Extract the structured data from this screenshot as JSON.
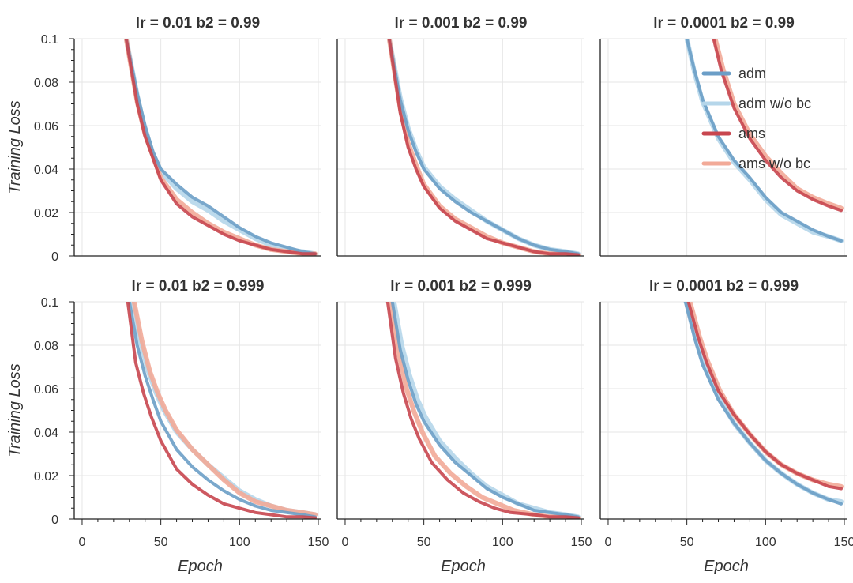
{
  "colors": {
    "adm": "#6b9ec7",
    "adm_wo_bc": "#b5d6ea",
    "ams": "#c8464f",
    "ams_wo_bc": "#f2aa98",
    "grid": "#e6e6e6",
    "axis": "#222222"
  },
  "figure": {
    "ylabel": "Training Loss",
    "xlabel": "Epoch",
    "legend": [
      "adm",
      "adm w/o bc",
      "ams",
      "ams w/o bc"
    ]
  },
  "chart_data": [
    {
      "type": "line",
      "title": "lr = 0.01   b2 = 0.99",
      "xlim": [
        -5,
        152
      ],
      "ylim": [
        0,
        0.1
      ],
      "xticks": [
        "0",
        "50",
        "100",
        "150"
      ],
      "yticks": [
        "0",
        "0.02",
        "0.04",
        "0.06",
        "0.08",
        "0.1"
      ],
      "ylabel": "Training Loss",
      "xlabel": "",
      "series": [
        {
          "name": "adm",
          "x": [
            28,
            35,
            40,
            45,
            50,
            60,
            70,
            80,
            90,
            100,
            110,
            120,
            130,
            140,
            148
          ],
          "y": [
            0.1,
            0.075,
            0.06,
            0.048,
            0.04,
            0.033,
            0.027,
            0.023,
            0.018,
            0.013,
            0.009,
            0.006,
            0.004,
            0.002,
            0.001
          ]
        },
        {
          "name": "adm w/o bc",
          "x": [
            28,
            35,
            40,
            45,
            50,
            60,
            70,
            80,
            90,
            100,
            110,
            120,
            130,
            140,
            148
          ],
          "y": [
            0.1,
            0.074,
            0.058,
            0.047,
            0.039,
            0.031,
            0.025,
            0.021,
            0.016,
            0.012,
            0.008,
            0.005,
            0.003,
            0.002,
            0.001
          ]
        },
        {
          "name": "ams",
          "x": [
            28,
            35,
            40,
            45,
            50,
            60,
            70,
            80,
            90,
            100,
            110,
            120,
            130,
            140,
            148
          ],
          "y": [
            0.1,
            0.07,
            0.055,
            0.045,
            0.035,
            0.024,
            0.018,
            0.014,
            0.01,
            0.007,
            0.005,
            0.003,
            0.002,
            0.001,
            0.001
          ]
        },
        {
          "name": "ams w/o bc",
          "x": [
            28,
            35,
            40,
            45,
            50,
            60,
            70,
            80,
            90,
            100,
            110,
            120,
            130,
            140,
            148
          ],
          "y": [
            0.1,
            0.071,
            0.056,
            0.046,
            0.036,
            0.026,
            0.02,
            0.015,
            0.011,
            0.008,
            0.005,
            0.003,
            0.002,
            0.001,
            0.001
          ]
        }
      ]
    },
    {
      "type": "line",
      "title": "lr = 0.001   b2 = 0.99",
      "xlim": [
        -5,
        152
      ],
      "ylim": [
        0,
        0.1
      ],
      "xticks": [
        "0",
        "50",
        "100",
        "150"
      ],
      "yticks": [
        "0",
        "0.02",
        "0.04",
        "0.06",
        "0.08",
        "0.1"
      ],
      "ylabel": "",
      "xlabel": "",
      "series": [
        {
          "name": "adm",
          "x": [
            28,
            35,
            40,
            45,
            50,
            60,
            70,
            80,
            90,
            100,
            110,
            120,
            130,
            140,
            148
          ],
          "y": [
            0.1,
            0.072,
            0.058,
            0.048,
            0.04,
            0.031,
            0.025,
            0.02,
            0.016,
            0.012,
            0.008,
            0.005,
            0.003,
            0.002,
            0.001
          ]
        },
        {
          "name": "adm w/o bc",
          "x": [
            28,
            35,
            40,
            45,
            50,
            60,
            70,
            80,
            90,
            100,
            110,
            120,
            130,
            140,
            148
          ],
          "y": [
            0.1,
            0.073,
            0.059,
            0.049,
            0.041,
            0.032,
            0.026,
            0.021,
            0.016,
            0.012,
            0.008,
            0.005,
            0.003,
            0.002,
            0.001
          ]
        },
        {
          "name": "ams",
          "x": [
            28,
            35,
            40,
            45,
            50,
            60,
            70,
            80,
            90,
            100,
            110,
            120,
            130,
            140,
            148
          ],
          "y": [
            0.1,
            0.066,
            0.05,
            0.04,
            0.032,
            0.022,
            0.016,
            0.012,
            0.008,
            0.006,
            0.004,
            0.002,
            0.001,
            0.001,
            0.0005
          ]
        },
        {
          "name": "ams w/o bc",
          "x": [
            28,
            35,
            40,
            45,
            50,
            60,
            70,
            80,
            90,
            100,
            110,
            120,
            130,
            140,
            148
          ],
          "y": [
            0.1,
            0.068,
            0.052,
            0.042,
            0.033,
            0.023,
            0.017,
            0.013,
            0.009,
            0.006,
            0.004,
            0.002,
            0.001,
            0.001,
            0.0005
          ]
        }
      ]
    },
    {
      "type": "line",
      "title": "lr = 0.0001   b2 = 0.99",
      "xlim": [
        -5,
        152
      ],
      "ylim": [
        0,
        0.1
      ],
      "xticks": [
        "0",
        "50",
        "100",
        "150"
      ],
      "yticks": [
        "0",
        "0.02",
        "0.04",
        "0.06",
        "0.08",
        "0.1"
      ],
      "ylabel": "",
      "xlabel": "",
      "legend_position": "top-right",
      "series": [
        {
          "name": "adm",
          "x": [
            50,
            55,
            60,
            70,
            80,
            90,
            100,
            110,
            120,
            130,
            140,
            148
          ],
          "y": [
            0.1,
            0.085,
            0.072,
            0.055,
            0.044,
            0.036,
            0.027,
            0.02,
            0.016,
            0.012,
            0.009,
            0.007
          ]
        },
        {
          "name": "adm w/o bc",
          "x": [
            50,
            55,
            60,
            70,
            80,
            90,
            100,
            110,
            120,
            130,
            140,
            148
          ],
          "y": [
            0.1,
            0.084,
            0.071,
            0.054,
            0.043,
            0.035,
            0.026,
            0.019,
            0.015,
            0.011,
            0.009,
            0.007
          ]
        },
        {
          "name": "ams",
          "x": [
            67,
            72,
            80,
            90,
            100,
            110,
            120,
            130,
            140,
            148
          ],
          "y": [
            0.1,
            0.085,
            0.068,
            0.054,
            0.044,
            0.036,
            0.03,
            0.026,
            0.023,
            0.021
          ]
        },
        {
          "name": "ams w/o bc",
          "x": [
            68,
            73,
            80,
            90,
            100,
            110,
            120,
            130,
            140,
            148
          ],
          "y": [
            0.1,
            0.086,
            0.07,
            0.056,
            0.046,
            0.038,
            0.031,
            0.027,
            0.024,
            0.022
          ]
        }
      ]
    },
    {
      "type": "line",
      "title": "lr = 0.01   b2 = 0.999",
      "xlim": [
        -5,
        152
      ],
      "ylim": [
        0,
        0.1
      ],
      "xticks": [
        "0",
        "50",
        "100",
        "150"
      ],
      "yticks": [
        "0",
        "0.02",
        "0.04",
        "0.06",
        "0.08",
        "0.1"
      ],
      "ylabel": "Training Loss",
      "xlabel": "Epoch",
      "series": [
        {
          "name": "adm",
          "x": [
            30,
            35,
            40,
            45,
            50,
            60,
            70,
            80,
            90,
            100,
            110,
            120,
            130,
            140,
            148
          ],
          "y": [
            0.1,
            0.08,
            0.066,
            0.055,
            0.045,
            0.032,
            0.024,
            0.018,
            0.013,
            0.009,
            0.006,
            0.004,
            0.003,
            0.002,
            0.001
          ]
        },
        {
          "name": "adm w/o bc",
          "x": [
            32,
            37,
            42,
            47,
            52,
            60,
            70,
            80,
            90,
            100,
            110,
            120,
            130,
            140,
            148
          ],
          "y": [
            0.1,
            0.082,
            0.068,
            0.058,
            0.05,
            0.04,
            0.032,
            0.025,
            0.019,
            0.013,
            0.009,
            0.006,
            0.004,
            0.003,
            0.002
          ]
        },
        {
          "name": "ams",
          "x": [
            29,
            34,
            39,
            44,
            50,
            60,
            70,
            80,
            90,
            100,
            110,
            120,
            130,
            140,
            148
          ],
          "y": [
            0.1,
            0.072,
            0.058,
            0.047,
            0.036,
            0.023,
            0.016,
            0.011,
            0.007,
            0.005,
            0.003,
            0.002,
            0.001,
            0.001,
            0.0005
          ]
        },
        {
          "name": "ams w/o bc",
          "x": [
            33,
            38,
            43,
            48,
            53,
            60,
            70,
            80,
            90,
            100,
            110,
            120,
            130,
            140,
            148
          ],
          "y": [
            0.1,
            0.082,
            0.068,
            0.058,
            0.05,
            0.041,
            0.032,
            0.025,
            0.018,
            0.012,
            0.008,
            0.006,
            0.004,
            0.003,
            0.002
          ]
        }
      ]
    },
    {
      "type": "line",
      "title": "lr = 0.001   b2 = 0.999",
      "xlim": [
        -5,
        152
      ],
      "ylim": [
        0,
        0.1
      ],
      "xticks": [
        "0",
        "50",
        "100",
        "150"
      ],
      "yticks": [
        "0",
        "0.02",
        "0.04",
        "0.06",
        "0.08",
        "0.1"
      ],
      "ylabel": "",
      "xlabel": "Epoch",
      "series": [
        {
          "name": "adm",
          "x": [
            30,
            35,
            40,
            45,
            50,
            60,
            70,
            80,
            90,
            100,
            110,
            120,
            130,
            140,
            148
          ],
          "y": [
            0.1,
            0.078,
            0.064,
            0.053,
            0.045,
            0.034,
            0.026,
            0.02,
            0.014,
            0.01,
            0.007,
            0.004,
            0.003,
            0.002,
            0.001
          ]
        },
        {
          "name": "adm w/o bc",
          "x": [
            31,
            36,
            41,
            46,
            51,
            60,
            70,
            80,
            90,
            100,
            110,
            120,
            130,
            140,
            148
          ],
          "y": [
            0.1,
            0.08,
            0.066,
            0.055,
            0.047,
            0.036,
            0.028,
            0.021,
            0.015,
            0.011,
            0.007,
            0.005,
            0.003,
            0.002,
            0.001
          ]
        },
        {
          "name": "ams",
          "x": [
            27,
            32,
            37,
            42,
            47,
            55,
            65,
            75,
            85,
            95,
            105,
            120,
            130,
            140,
            148
          ],
          "y": [
            0.1,
            0.074,
            0.058,
            0.046,
            0.037,
            0.026,
            0.018,
            0.012,
            0.008,
            0.005,
            0.003,
            0.002,
            0.001,
            0.001,
            0.0005
          ]
        },
        {
          "name": "ams w/o bc",
          "x": [
            29,
            34,
            39,
            44,
            49,
            57,
            67,
            77,
            87,
            97,
            107,
            120,
            130,
            140,
            148
          ],
          "y": [
            0.1,
            0.076,
            0.06,
            0.049,
            0.04,
            0.029,
            0.021,
            0.015,
            0.01,
            0.007,
            0.004,
            0.002,
            0.001,
            0.001,
            0.0005
          ]
        }
      ]
    },
    {
      "type": "line",
      "title": "lr = 0.0001   b2 = 0.999",
      "xlim": [
        -5,
        152
      ],
      "ylim": [
        0,
        0.1
      ],
      "xticks": [
        "0",
        "50",
        "100",
        "150"
      ],
      "yticks": [
        "0",
        "0.02",
        "0.04",
        "0.06",
        "0.08",
        "0.1"
      ],
      "ylabel": "",
      "xlabel": "Epoch",
      "series": [
        {
          "name": "adm",
          "x": [
            49,
            55,
            60,
            70,
            80,
            90,
            100,
            110,
            120,
            130,
            140,
            148
          ],
          "y": [
            0.1,
            0.083,
            0.071,
            0.055,
            0.044,
            0.035,
            0.027,
            0.021,
            0.016,
            0.012,
            0.009,
            0.007
          ]
        },
        {
          "name": "adm w/o bc",
          "x": [
            50,
            56,
            61,
            70,
            80,
            90,
            100,
            110,
            120,
            130,
            140,
            148
          ],
          "y": [
            0.1,
            0.083,
            0.071,
            0.056,
            0.044,
            0.035,
            0.027,
            0.021,
            0.016,
            0.012,
            0.009,
            0.008
          ]
        },
        {
          "name": "ams",
          "x": [
            51,
            57,
            62,
            70,
            80,
            90,
            100,
            110,
            120,
            130,
            140,
            148
          ],
          "y": [
            0.1,
            0.084,
            0.073,
            0.059,
            0.048,
            0.039,
            0.031,
            0.025,
            0.021,
            0.018,
            0.015,
            0.014
          ]
        },
        {
          "name": "ams w/o bc",
          "x": [
            52,
            58,
            63,
            71,
            80,
            90,
            100,
            110,
            120,
            130,
            140,
            148
          ],
          "y": [
            0.1,
            0.084,
            0.073,
            0.059,
            0.048,
            0.039,
            0.031,
            0.025,
            0.021,
            0.018,
            0.016,
            0.015
          ]
        }
      ]
    }
  ]
}
